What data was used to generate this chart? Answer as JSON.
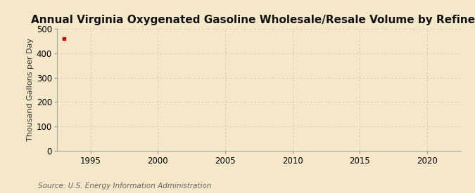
{
  "title": "Annual Virginia Oxygenated Gasoline Wholesale/Resale Volume by Refiners",
  "ylabel": "Thousand Gallons per Day",
  "source": "Source: U.S. Energy Information Administration",
  "background_color": "#f5e8c8",
  "plot_bg_color": "#f5e8c8",
  "data_x": [
    1993
  ],
  "data_y": [
    460
  ],
  "data_color": "#cc0000",
  "xlim": [
    1992.5,
    2022.5
  ],
  "ylim": [
    0,
    500
  ],
  "yticks": [
    0,
    100,
    200,
    300,
    400,
    500
  ],
  "xticks": [
    1995,
    2000,
    2005,
    2010,
    2015,
    2020
  ],
  "grid_color": "#d4c89a",
  "title_fontsize": 11,
  "label_fontsize": 8,
  "tick_fontsize": 8.5,
  "source_fontsize": 7.5
}
